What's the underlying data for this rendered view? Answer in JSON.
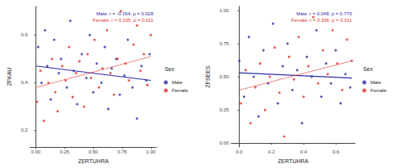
{
  "chart_data": [
    {
      "type": "scatter",
      "x_label": "ZERTUHRA",
      "y_label": "ZFKAU",
      "xlim": [
        -0.05,
        1.05
      ],
      "xticks": [
        {
          "value": 0,
          "label": "0.00"
        },
        {
          "value": 0.25,
          "label": "0.25"
        },
        {
          "value": 0.5,
          "label": "0.50"
        },
        {
          "value": 0.75,
          "label": "0.75"
        },
        {
          "value": 1,
          "label": "1.00"
        }
      ],
      "ylim": [
        0.13,
        0.72
      ],
      "yticks": [
        0.2,
        0.4,
        0.6
      ],
      "grid": false,
      "legend": "right",
      "legend_title": "Sex",
      "marker": "circle",
      "annotations": [
        "Male: r = -0.164, p = 0.028",
        "Female: r = 0.235, p = 0.011"
      ],
      "series": [
        {
          "name": "Male",
          "color": "#2b2ba6",
          "line_style": "solid",
          "x": [
            0.02,
            0.05,
            0.08,
            0.1,
            0.13,
            0.16,
            0.2,
            0.22,
            0.27,
            0.3,
            0.33,
            0.36,
            0.4,
            0.44,
            0.47,
            0.5,
            0.53,
            0.57,
            0.6,
            0.63,
            0.66,
            0.7,
            0.73,
            0.77,
            0.8,
            0.84,
            0.88,
            0.92,
            0.96,
            0.99
          ],
          "values": [
            0.55,
            0.4,
            0.62,
            0.47,
            0.33,
            0.58,
            0.44,
            0.5,
            0.38,
            0.66,
            0.45,
            0.31,
            0.52,
            0.42,
            0.6,
            0.36,
            0.48,
            0.4,
            0.55,
            0.29,
            0.46,
            0.5,
            0.35,
            0.43,
            0.58,
            0.38,
            0.25,
            0.47,
            0.41,
            0.52
          ],
          "fit_x": [
            0,
            1
          ],
          "fit_y": [
            0.47,
            0.41
          ]
        },
        {
          "name": "Female",
          "color": "#e0302a",
          "line_style": "dotted",
          "x": [
            0.01,
            0.04,
            0.07,
            0.11,
            0.14,
            0.17,
            0.19,
            0.23,
            0.26,
            0.29,
            0.32,
            0.35,
            0.38,
            0.42,
            0.45,
            0.48,
            0.51,
            0.55,
            0.58,
            0.62,
            0.65,
            0.68,
            0.71,
            0.74,
            0.78,
            0.81,
            0.85,
            0.88,
            0.91,
            0.94,
            0.97,
            1.0
          ],
          "values": [
            0.32,
            0.45,
            0.24,
            0.4,
            0.5,
            0.36,
            0.28,
            0.47,
            0.41,
            0.55,
            0.34,
            0.44,
            0.49,
            0.3,
            0.52,
            0.42,
            0.58,
            0.38,
            0.46,
            0.62,
            0.44,
            0.35,
            0.5,
            0.7,
            0.48,
            0.41,
            0.56,
            0.64,
            0.45,
            0.52,
            0.39,
            0.6
          ],
          "fit_x": [
            0,
            1
          ],
          "fit_y": [
            0.38,
            0.51
          ]
        }
      ]
    },
    {
      "type": "scatter",
      "x_label": "ZERTUHRA",
      "y_label": "ZFSEES",
      "xlim": [
        -0.05,
        0.72
      ],
      "xticks": [
        {
          "value": 0,
          "label": "0.0"
        },
        0.2,
        0.4,
        0.6
      ],
      "ylim": [
        -0.03,
        1.03
      ],
      "yticks": [
        {
          "value": 0,
          "label": "0.00"
        },
        0.25,
        {
          "value": 0.5,
          "label": "0.50"
        },
        0.75,
        {
          "value": 1,
          "label": "1.00"
        }
      ],
      "grid": false,
      "legend": "right",
      "legend_title": "Sex",
      "marker": "circle",
      "annotations": [
        "Male: r = 0.048, p = 0.770",
        "Female: r = 0.336, p = 0.011"
      ],
      "series": [
        {
          "name": "Male",
          "color": "#2b2ba6",
          "line_style": "solid",
          "x": [
            0.0,
            0.03,
            0.06,
            0.09,
            0.12,
            0.15,
            0.18,
            0.21,
            0.24,
            0.27,
            0.3,
            0.33,
            0.36,
            0.39,
            0.42,
            0.45,
            0.48,
            0.51,
            0.54,
            0.57,
            0.6,
            0.63,
            0.66,
            0.69
          ],
          "values": [
            0.62,
            0.35,
            0.8,
            0.5,
            0.2,
            0.7,
            0.45,
            0.9,
            0.3,
            0.58,
            0.75,
            0.4,
            0.55,
            0.15,
            0.65,
            0.5,
            0.85,
            0.35,
            0.6,
            0.45,
            0.7,
            0.3,
            0.52,
            0.42
          ],
          "fit_x": [
            0,
            0.7
          ],
          "fit_y": [
            0.53,
            0.49
          ]
        },
        {
          "name": "Female",
          "color": "#e0302a",
          "line_style": "dotted",
          "x": [
            0.01,
            0.04,
            0.07,
            0.1,
            0.13,
            0.16,
            0.19,
            0.22,
            0.25,
            0.28,
            0.31,
            0.34,
            0.37,
            0.4,
            0.43,
            0.46,
            0.49,
            0.52,
            0.55,
            0.58,
            0.61,
            0.64,
            0.67,
            0.7
          ],
          "values": [
            0.3,
            0.55,
            0.15,
            0.42,
            0.6,
            0.25,
            0.5,
            0.72,
            0.38,
            0.05,
            0.65,
            0.48,
            0.8,
            0.35,
            0.58,
            0.95,
            0.45,
            0.7,
            0.52,
            0.85,
            0.6,
            0.4,
            0.78,
            0.62
          ],
          "fit_x": [
            0,
            0.7
          ],
          "fit_y": [
            0.4,
            0.62
          ]
        }
      ]
    }
  ]
}
